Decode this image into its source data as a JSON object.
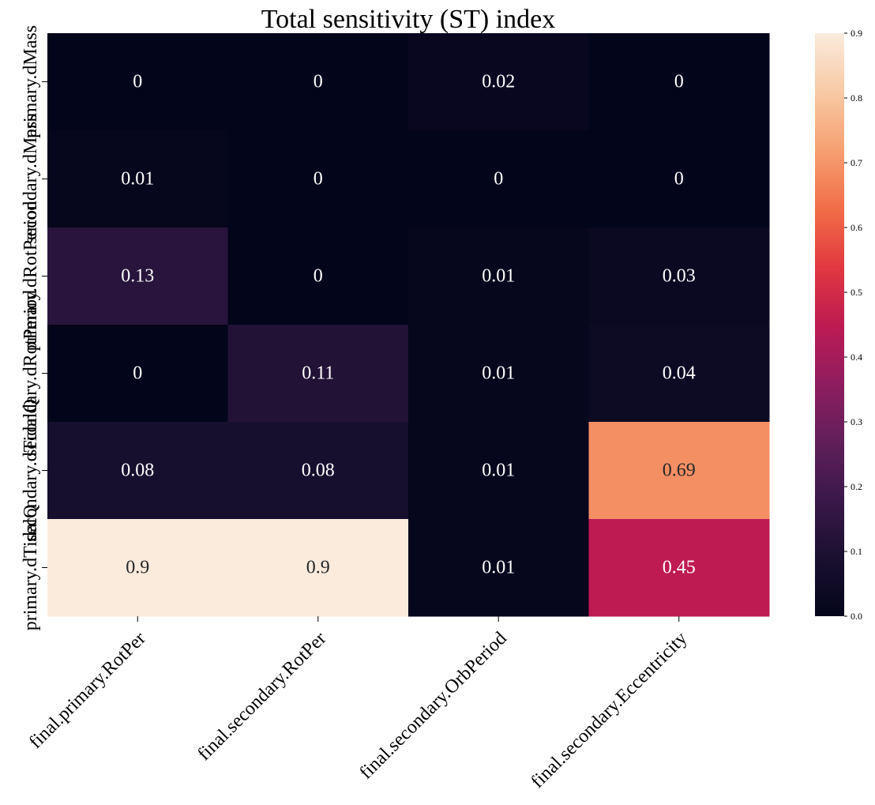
{
  "chart_data": {
    "type": "heatmap",
    "title": "Total sensitivity (ST) index",
    "x_categories": [
      "final.primary.RotPer",
      "final.secondary.RotPer",
      "final.secondary.OrbPeriod",
      "final.secondary.Eccentricity"
    ],
    "y_categories": [
      "primary.dMass",
      "secondary.dMass",
      "primary.dRotPeriod",
      "secondary.dRotPeriod",
      "secondary.dTidalQ",
      "primary.dTidalQ"
    ],
    "values": [
      [
        0,
        0,
        0.02,
        0
      ],
      [
        0.01,
        0,
        0,
        0
      ],
      [
        0.13,
        0,
        0.01,
        0.03
      ],
      [
        0,
        0.11,
        0.01,
        0.04
      ],
      [
        0.08,
        0.08,
        0.01,
        0.69
      ],
      [
        0.9,
        0.9,
        0.01,
        0.45
      ]
    ],
    "value_labels": [
      [
        "0",
        "0",
        "0.02",
        "0"
      ],
      [
        "0.01",
        "0",
        "0",
        "0"
      ],
      [
        "0.13",
        "0",
        "0.01",
        "0.03"
      ],
      [
        "0",
        "0.11",
        "0.01",
        "0.04"
      ],
      [
        "0.08",
        "0.08",
        "0.01",
        "0.69"
      ],
      [
        "0.9",
        "0.9",
        "0.01",
        "0.45"
      ]
    ],
    "colorbar": {
      "min": 0,
      "max": 0.9,
      "ticks": [
        0,
        0.1,
        0.2,
        0.3,
        0.4,
        0.5,
        0.6,
        0.7,
        0.8,
        0.9
      ],
      "tick_labels": [
        "0.0",
        "0.1",
        "0.2",
        "0.3",
        "0.4",
        "0.5",
        "0.6",
        "0.7",
        "0.8",
        "0.9"
      ],
      "colormap": "rocket"
    },
    "grid": false,
    "legend": "colorbar-right"
  }
}
